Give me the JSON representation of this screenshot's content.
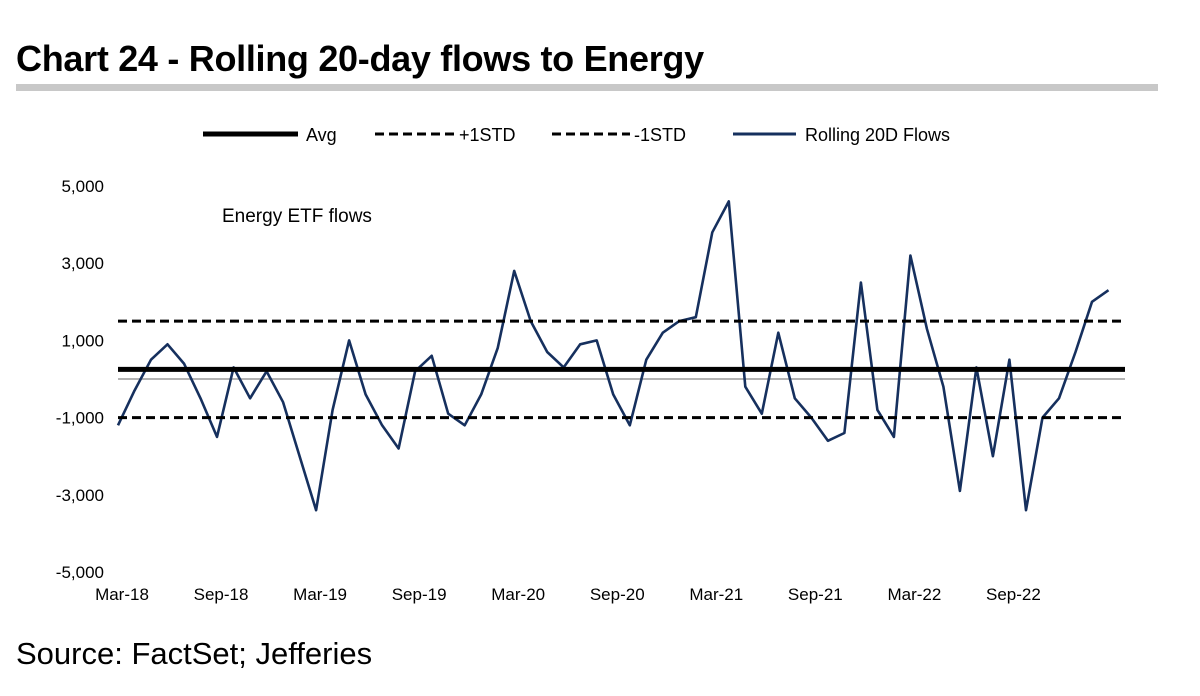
{
  "title": "Chart 24 - Rolling 20-day flows to Energy",
  "source": "Source: FactSet; Jefferies",
  "chart_data": {
    "type": "line",
    "annotation": "Energy ETF flows",
    "legend_position": "top",
    "ylim": [
      -5000,
      5000
    ],
    "y_ticks": [
      -5000,
      -3000,
      -1000,
      1000,
      3000,
      5000
    ],
    "y_tick_labels": [
      "-5,000",
      "-3,000",
      "-1,000",
      "1,000",
      "3,000",
      "5,000"
    ],
    "x_range": [
      "2018-03",
      "2023-04"
    ],
    "x_ticks": [
      "2018-03",
      "2018-09",
      "2019-03",
      "2019-09",
      "2020-03",
      "2020-09",
      "2021-03",
      "2021-09",
      "2022-03",
      "2022-09"
    ],
    "x_tick_labels": [
      "Mar-18",
      "Sep-18",
      "Mar-19",
      "Sep-19",
      "Mar-20",
      "Sep-20",
      "Mar-21",
      "Sep-21",
      "Mar-22",
      "Sep-22"
    ],
    "reference_lines": [
      {
        "name": "Avg",
        "value": 250,
        "style": "solid",
        "color": "#000000"
      },
      {
        "name": "+1STD",
        "value": 1500,
        "style": "dashed",
        "color": "#000000"
      },
      {
        "name": "-1STD",
        "value": -1000,
        "style": "dashed",
        "color": "#000000"
      }
    ],
    "series": [
      {
        "name": "Rolling 20D Flows",
        "color": "#16305e",
        "x": [
          "2018-03",
          "2018-04",
          "2018-05",
          "2018-06",
          "2018-07",
          "2018-08",
          "2018-09",
          "2018-10",
          "2018-11",
          "2018-12",
          "2019-01",
          "2019-02",
          "2019-03",
          "2019-04",
          "2019-05",
          "2019-06",
          "2019-07",
          "2019-08",
          "2019-09",
          "2019-10",
          "2019-11",
          "2019-12",
          "2020-01",
          "2020-02",
          "2020-03",
          "2020-04",
          "2020-05",
          "2020-06",
          "2020-07",
          "2020-08",
          "2020-09",
          "2020-10",
          "2020-11",
          "2020-12",
          "2021-01",
          "2021-02",
          "2021-03",
          "2021-04",
          "2021-05",
          "2021-06",
          "2021-07",
          "2021-08",
          "2021-09",
          "2021-10",
          "2021-11",
          "2021-12",
          "2022-01",
          "2022-02",
          "2022-03",
          "2022-04",
          "2022-05",
          "2022-06",
          "2022-07",
          "2022-08",
          "2022-09",
          "2022-10",
          "2022-11",
          "2022-12",
          "2023-01",
          "2023-02",
          "2023-03"
        ],
        "values": [
          -1200,
          -300,
          500,
          900,
          400,
          -500,
          -1500,
          300,
          -500,
          200,
          -600,
          -2000,
          -3400,
          -800,
          1000,
          -400,
          -1200,
          -1800,
          200,
          600,
          -900,
          -1200,
          -400,
          800,
          2800,
          1500,
          700,
          300,
          900,
          1000,
          -400,
          -1200,
          500,
          1200,
          1500,
          1600,
          3800,
          4600,
          -200,
          -900,
          1200,
          -500,
          -1000,
          -1600,
          -1400,
          2500,
          -800,
          -1500,
          3200,
          1300,
          -200,
          -2900,
          300,
          -2000,
          500,
          -3400,
          -1000,
          -500,
          700,
          2000,
          2300
        ]
      }
    ]
  }
}
